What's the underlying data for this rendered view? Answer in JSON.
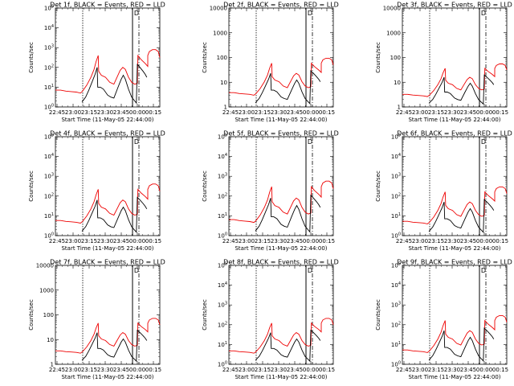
{
  "page": {
    "x_axis_label": "Start Time (11-May-05 22:44:00)",
    "y_axis_label": "Counts/sec",
    "x_tick_labels": [
      "22:45",
      "23:00",
      "23:15",
      "23:30",
      "23:45",
      "00:00",
      "00:15"
    ],
    "marker_label": "D",
    "black_color": "#000000",
    "red_color": "#ee0000"
  },
  "chart_data": [
    {
      "type": "line",
      "title": "Det 1f, BLACK = Events, RED = LLD",
      "y_scale": "log",
      "ylim": [
        1,
        100000
      ],
      "y_tick_labels": [
        "10^0",
        "10^1",
        "10^2",
        "10^3",
        "10^4",
        "10^5"
      ],
      "xlim_minutes_since_start": [
        0,
        100
      ],
      "red_level": 1.0,
      "black_level": 1.0,
      "series": [
        {
          "name": "BLACK",
          "role": "Events",
          "color": "#000000"
        },
        {
          "name": "RED",
          "role": "LLD",
          "color": "#ee0000"
        }
      ]
    },
    {
      "type": "line",
      "title": "Det 2f, BLACK = Events, RED = LLD",
      "y_scale": "log",
      "ylim": [
        1,
        10000
      ],
      "y_tick_labels": [
        "1",
        "10",
        "100",
        "1000",
        "10000"
      ],
      "xlim_minutes_since_start": [
        0,
        100
      ],
      "red_level": 0.85,
      "black_level": 0.85,
      "series": [
        {
          "name": "BLACK",
          "role": "Events",
          "color": "#000000"
        },
        {
          "name": "RED",
          "role": "LLD",
          "color": "#ee0000"
        }
      ]
    },
    {
      "type": "line",
      "title": "Det 3f, BLACK = Events, RED = LLD",
      "y_scale": "log",
      "ylim": [
        1,
        10000
      ],
      "y_tick_labels": [
        "1",
        "10",
        "100",
        "1000",
        "10000"
      ],
      "xlim_minutes_since_start": [
        0,
        100
      ],
      "red_level": 0.75,
      "black_level": 0.75,
      "series": [
        {
          "name": "BLACK",
          "role": "Events",
          "color": "#000000"
        },
        {
          "name": "RED",
          "role": "LLD",
          "color": "#ee0000"
        }
      ]
    },
    {
      "type": "line",
      "title": "Det 4f, BLACK = Events, RED = LLD",
      "y_scale": "log",
      "ylim": [
        1,
        100000
      ],
      "y_tick_labels": [
        "10^0",
        "10^1",
        "10^2",
        "10^3",
        "10^4",
        "10^5"
      ],
      "xlim_minutes_since_start": [
        0,
        100
      ],
      "red_level": 0.9,
      "black_level": 0.9,
      "series": [
        {
          "name": "BLACK",
          "role": "Events",
          "color": "#000000"
        },
        {
          "name": "RED",
          "role": "LLD",
          "color": "#ee0000"
        }
      ]
    },
    {
      "type": "line",
      "title": "Det 5f, BLACK = Events, RED = LLD",
      "y_scale": "log",
      "ylim": [
        1,
        100000
      ],
      "y_tick_labels": [
        "10^0",
        "10^1",
        "10^2",
        "10^3",
        "10^4",
        "10^5"
      ],
      "xlim_minutes_since_start": [
        0,
        100
      ],
      "red_level": 0.95,
      "black_level": 0.95,
      "series": [
        {
          "name": "BLACK",
          "role": "Events",
          "color": "#000000"
        },
        {
          "name": "RED",
          "role": "LLD",
          "color": "#ee0000"
        }
      ]
    },
    {
      "type": "line",
      "title": "Det 6f, BLACK = Events, RED = LLD",
      "y_scale": "log",
      "ylim": [
        1,
        100000
      ],
      "y_tick_labels": [
        "10^0",
        "10^1",
        "10^2",
        "10^3",
        "10^4",
        "10^5"
      ],
      "xlim_minutes_since_start": [
        0,
        100
      ],
      "red_level": 0.85,
      "black_level": 0.85,
      "series": [
        {
          "name": "BLACK",
          "role": "Events",
          "color": "#000000"
        },
        {
          "name": "RED",
          "role": "LLD",
          "color": "#ee0000"
        }
      ]
    },
    {
      "type": "line",
      "title": "Det 7f, BLACK = Events, RED = LLD",
      "y_scale": "log",
      "ylim": [
        1,
        10000
      ],
      "y_tick_labels": [
        "1",
        "10",
        "100",
        "1000",
        "10000"
      ],
      "xlim_minutes_since_start": [
        0,
        100
      ],
      "red_level": 0.8,
      "black_level": 0.8,
      "series": [
        {
          "name": "BLACK",
          "role": "Events",
          "color": "#000000"
        },
        {
          "name": "RED",
          "role": "LLD",
          "color": "#ee0000"
        }
      ]
    },
    {
      "type": "line",
      "title": "Det 8f, BLACK = Events, RED = LLD",
      "y_scale": "log",
      "ylim": [
        1,
        100000
      ],
      "y_tick_labels": [
        "10^0",
        "10^1",
        "10^2",
        "10^3",
        "10^4",
        "10^5"
      ],
      "xlim_minutes_since_start": [
        0,
        100
      ],
      "red_level": 0.8,
      "black_level": 0.8,
      "series": [
        {
          "name": "BLACK",
          "role": "Events",
          "color": "#000000"
        },
        {
          "name": "RED",
          "role": "LLD",
          "color": "#ee0000"
        }
      ]
    },
    {
      "type": "line",
      "title": "Det 9f, BLACK = Events, RED = LLD",
      "y_scale": "log",
      "ylim": [
        1,
        100000
      ],
      "y_tick_labels": [
        "10^0",
        "10^1",
        "10^2",
        "10^3",
        "10^4",
        "10^5"
      ],
      "xlim_minutes_since_start": [
        0,
        100
      ],
      "red_level": 0.85,
      "black_level": 0.85,
      "series": [
        {
          "name": "BLACK",
          "role": "Events",
          "color": "#000000"
        },
        {
          "name": "RED",
          "role": "LLD",
          "color": "#ee0000"
        }
      ]
    }
  ]
}
